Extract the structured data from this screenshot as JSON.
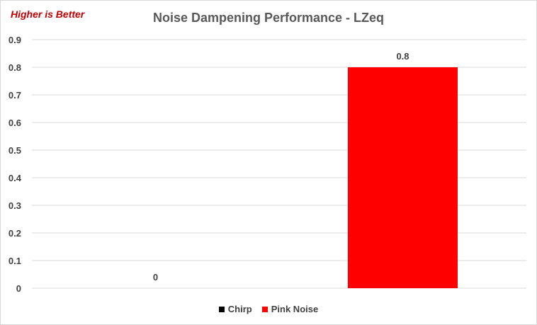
{
  "chart_data": {
    "type": "bar",
    "title": "Noise Dampening Performance - LZeq",
    "annotation": "Higher is Better",
    "categories": [
      "Chirp",
      "Pink Noise"
    ],
    "values": [
      0,
      0.8
    ],
    "data_labels": [
      "0",
      "0.8"
    ],
    "series": [
      {
        "name": "Chirp",
        "value": 0,
        "color": "#000000"
      },
      {
        "name": "Pink Noise",
        "value": 0.8,
        "color": "#ff0000"
      }
    ],
    "ylim": [
      0,
      0.9
    ],
    "yticks": [
      "0",
      "0.1",
      "0.2",
      "0.3",
      "0.4",
      "0.5",
      "0.6",
      "0.7",
      "0.8",
      "0.9"
    ],
    "grid": true,
    "legend_position": "bottom"
  },
  "colors": {
    "annotation": "#c00000",
    "gridline": "#d9d9d9",
    "axis_text": "#404040",
    "title": "#595959"
  }
}
